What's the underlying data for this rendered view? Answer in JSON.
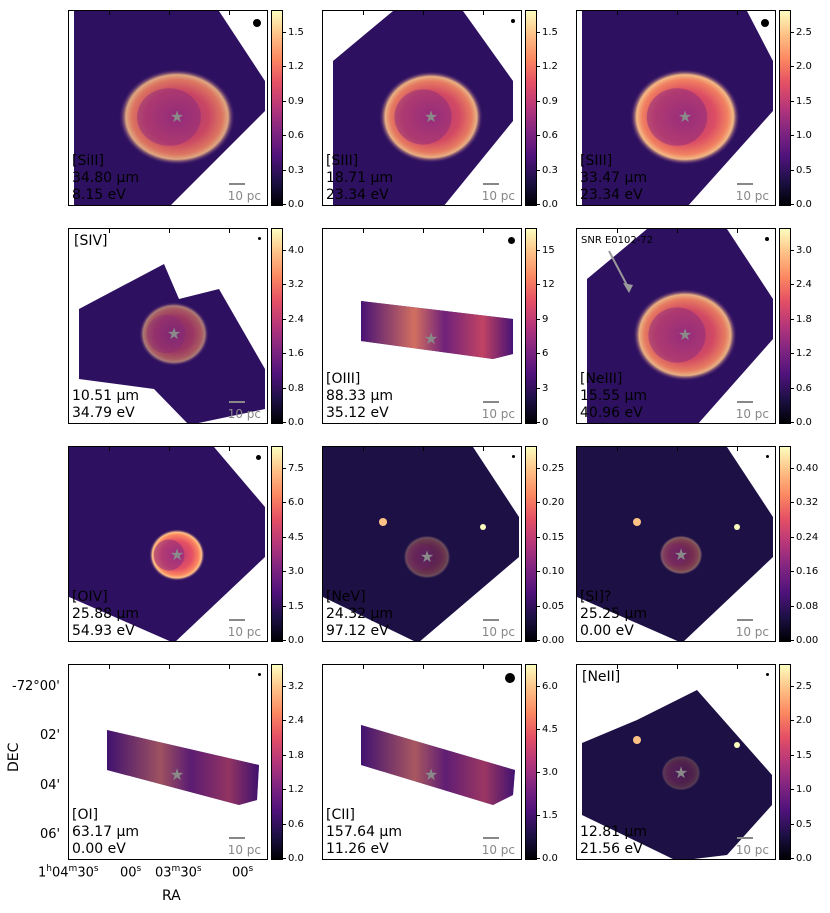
{
  "panels": [
    {
      "line": "[SiII]",
      "wave": "34.80 µm",
      "energy": "8.15 eV",
      "ticks": [
        "1.5",
        "1.2",
        "0.9",
        "0.6",
        "0.3",
        "0.0"
      ]
    },
    {
      "line": "[SIII]",
      "wave": "18.71 µm",
      "energy": "23.34 eV",
      "ticks": [
        "1.5",
        "1.2",
        "0.9",
        "0.6",
        "0.3",
        "0.0"
      ]
    },
    {
      "line": "[SIII]",
      "wave": "33.47 µm",
      "energy": "23.34 eV",
      "ticks": [
        "2.5",
        "2.0",
        "1.5",
        "1.0",
        "0.5",
        "0.0"
      ]
    },
    {
      "line": "[SIV]",
      "wave": "10.51 µm",
      "energy": "34.79 eV",
      "ticks": [
        "4.0",
        "3.2",
        "2.4",
        "1.6",
        "0.8",
        "0.0"
      ]
    },
    {
      "line": "[OIII]",
      "wave": "88.33 µm",
      "energy": "35.12 eV",
      "ticks": [
        "15",
        "12",
        "9",
        "6",
        "3",
        "0"
      ]
    },
    {
      "line": "[NeIII]",
      "wave": "15.55 µm",
      "energy": "40.96 eV",
      "ticks": [
        "3.0",
        "2.4",
        "1.8",
        "1.2",
        "0.6",
        "0.0"
      ]
    },
    {
      "line": "[OIV]",
      "wave": "25.88 µm",
      "energy": "54.93 eV",
      "ticks": [
        "7.5",
        "6.0",
        "4.5",
        "3.0",
        "1.5",
        "0.0"
      ]
    },
    {
      "line": "[NeV]",
      "wave": "24.32 µm",
      "energy": "97.12 eV",
      "ticks": [
        "0.25",
        "0.20",
        "0.15",
        "0.10",
        "0.05",
        "0.00"
      ]
    },
    {
      "line": "[SI]?",
      "wave": "25.25 µm",
      "energy": "0.00 eV",
      "ticks": [
        "0.40",
        "0.32",
        "0.24",
        "0.16",
        "0.08",
        "0.00"
      ]
    },
    {
      "line": "[OI]",
      "wave": "63.17 µm",
      "energy": "0.00 eV",
      "ticks": [
        "3.2",
        "2.4",
        "1.8",
        "1.2",
        "0.6",
        "0.0"
      ]
    },
    {
      "line": "[CII]",
      "wave": "157.64 µm",
      "energy": "11.26 eV",
      "ticks": [
        "6.0",
        "4.5",
        "3.0",
        "1.5",
        "0.0"
      ]
    },
    {
      "line": "[NeII]",
      "wave": "12.81 µm",
      "energy": "21.56 eV",
      "ticks": [
        "2.5",
        "2.0",
        "1.5",
        "1.0",
        "0.5",
        "0.0"
      ]
    }
  ],
  "scale_label": "10 pc",
  "annotation": "SNR E0102-72",
  "axes": {
    "ylabel": "DEC",
    "xlabel": "RA",
    "dec_ticks": [
      "-72°00'",
      "02'",
      "04'",
      "06'"
    ],
    "ra_ticks": [
      "1h04m30s",
      "00s",
      "03m30s",
      "00s"
    ]
  },
  "colors": {
    "colormap": "magma",
    "star": "#8a8a8a"
  }
}
